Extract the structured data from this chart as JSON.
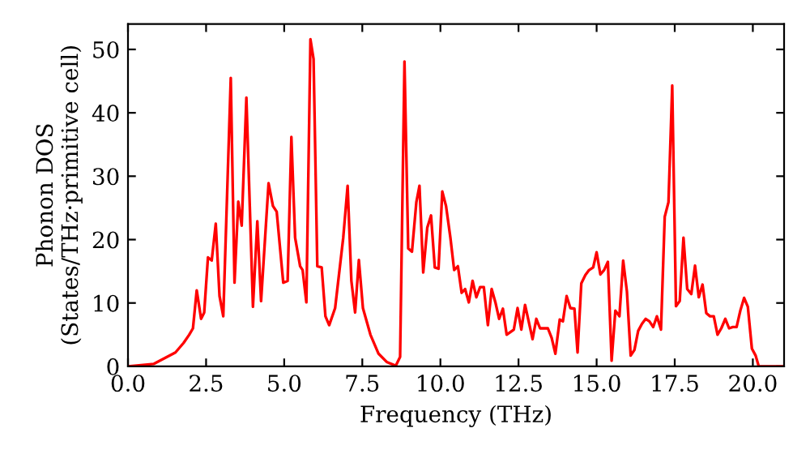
{
  "chart_data": {
    "type": "line",
    "xlabel": "Frequency (THz)",
    "ylabel": "Phonon DOS\n(States/THz·primitive cell)",
    "xlim": [
      0,
      21
    ],
    "ylim": [
      0,
      54
    ],
    "xticks": [
      {
        "value": 0,
        "label": "0.0"
      },
      {
        "value": 2.5,
        "label": "2.5"
      },
      {
        "value": 5,
        "label": "5.0"
      },
      {
        "value": 7.5,
        "label": "7.5"
      },
      {
        "value": 10,
        "label": "10.0"
      },
      {
        "value": 12.5,
        "label": "12.5"
      },
      {
        "value": 15,
        "label": "15.0"
      },
      {
        "value": 17.5,
        "label": "17.5"
      },
      {
        "value": 20,
        "label": "20.0"
      }
    ],
    "yticks": [
      0,
      10,
      20,
      30,
      40,
      50
    ],
    "grid": false,
    "legend": false,
    "marker": "none",
    "line_style": "solid",
    "series": [
      {
        "color": "#ff0000",
        "x": [
          0,
          0.83,
          1.52,
          1.78,
          1.96,
          2.08,
          2.2,
          2.34,
          2.44,
          2.56,
          2.68,
          2.81,
          2.93,
          3.05,
          3.29,
          3.41,
          3.53,
          3.64,
          3.79,
          4.0,
          4.14,
          4.26,
          4.5,
          4.64,
          4.76,
          4.97,
          5.11,
          5.23,
          5.35,
          5.51,
          5.59,
          5.71,
          5.84,
          5.94,
          6.06,
          6.2,
          6.32,
          6.44,
          6.63,
          6.89,
          7.03,
          7.15,
          7.27,
          7.39,
          7.52,
          7.76,
          8.02,
          8.28,
          8.57,
          8.71,
          8.85,
          8.97,
          9.09,
          9.23,
          9.33,
          9.45,
          9.58,
          9.7,
          9.82,
          9.94,
          10.06,
          10.18,
          10.32,
          10.44,
          10.56,
          10.68,
          10.79,
          10.91,
          11.03,
          11.15,
          11.27,
          11.39,
          11.52,
          11.64,
          11.76,
          11.88,
          12.0,
          12.12,
          12.35,
          12.47,
          12.59,
          12.71,
          12.95,
          13.07,
          13.19,
          13.44,
          13.56,
          13.68,
          13.82,
          13.92,
          14.04,
          14.16,
          14.29,
          14.39,
          14.51,
          14.64,
          14.76,
          14.89,
          15.0,
          15.12,
          15.24,
          15.36,
          15.48,
          15.6,
          15.73,
          15.85,
          15.97,
          16.09,
          16.21,
          16.33,
          16.45,
          16.57,
          16.69,
          16.81,
          16.93,
          17.06,
          17.18,
          17.3,
          17.42,
          17.54,
          17.66,
          17.78,
          17.9,
          18.03,
          18.15,
          18.27,
          18.39,
          18.51,
          18.63,
          18.75,
          18.87,
          18.99,
          19.12,
          19.24,
          19.36,
          19.48,
          19.6,
          19.72,
          19.84,
          19.97,
          20.09,
          20.19,
          21
        ],
        "values": [
          0,
          0.4,
          2.2,
          3.7,
          5,
          6,
          12,
          7.5,
          8.5,
          17.2,
          16.7,
          22.5,
          11.1,
          7.9,
          45.5,
          13.2,
          26,
          22.2,
          42.4,
          9.4,
          22.9,
          10.3,
          28.9,
          25.3,
          24.4,
          13.2,
          13.5,
          36.2,
          20.3,
          15.8,
          15.2,
          10.1,
          51.6,
          48.5,
          15.8,
          15.6,
          7.9,
          6.5,
          9.2,
          20.3,
          28.5,
          13.5,
          8.5,
          16.8,
          9.2,
          5,
          2,
          0.7,
          0.1,
          1.5,
          48.1,
          18.6,
          18.1,
          25.9,
          28.5,
          14.8,
          21.9,
          23.8,
          15.6,
          15.4,
          27.6,
          25.3,
          20.3,
          15.2,
          15.8,
          11.6,
          12.2,
          10.1,
          13.5,
          10.9,
          12.5,
          12.5,
          6.5,
          12.2,
          10.1,
          7.5,
          9.1,
          5,
          5.8,
          9.2,
          5.8,
          9.7,
          4.3,
          7.5,
          6,
          6,
          4.5,
          2,
          7.4,
          7.1,
          11.1,
          9.2,
          9.1,
          2.2,
          13.1,
          14.4,
          15.2,
          15.6,
          18,
          14.5,
          15.2,
          16.5,
          0.9,
          8.8,
          7.9,
          16.7,
          11.8,
          1.7,
          2.6,
          5.6,
          6.7,
          7.5,
          7.1,
          6.2,
          7.9,
          5.8,
          23.6,
          25.9,
          44.3,
          9.5,
          10.3,
          20.3,
          12.2,
          11.4,
          15.9,
          10.9,
          12.9,
          8.4,
          7.9,
          7.9,
          5,
          6,
          7.5,
          6,
          6.2,
          6.2,
          8.8,
          10.8,
          9.4,
          2.8,
          1.7,
          0,
          0
        ]
      }
    ]
  }
}
